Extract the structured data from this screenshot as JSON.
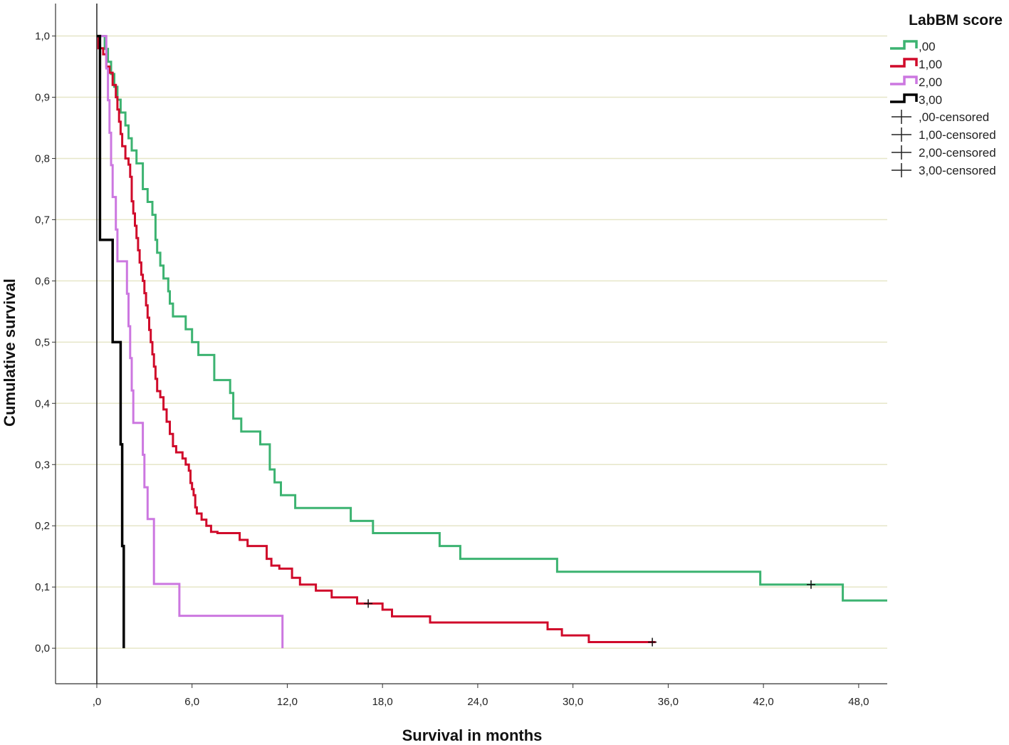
{
  "chart_data": {
    "type": "line",
    "subtype": "kaplan-meier step",
    "xlabel": "Survival in months",
    "ylabel": "Cumulative survival",
    "xlim": [
      -2.6,
      49.8
    ],
    "ylim": [
      -0.058,
      1.053
    ],
    "x_ticks": [
      0,
      6,
      12,
      18,
      24,
      30,
      36,
      42,
      48
    ],
    "x_tick_labels": [
      ",0",
      "6,0",
      "12,0",
      "18,0",
      "24,0",
      "30,0",
      "36,0",
      "42,0",
      "48,0"
    ],
    "y_ticks": [
      0,
      0.1,
      0.2,
      0.3,
      0.4,
      0.5,
      0.6,
      0.7,
      0.8,
      0.9,
      1.0
    ],
    "y_tick_labels": [
      "0,0",
      "0,1",
      "0,2",
      "0,3",
      "0,4",
      "0,5",
      "0,6",
      "0,7",
      "0,8",
      "0,9",
      "1,0"
    ],
    "grid": "horizontal",
    "legend_position": "top-right",
    "legend_title": "LabBM score",
    "legend_censored_labels": [
      ",00-censored",
      "1,00-censored",
      "2,00-censored",
      "3,00-censored"
    ],
    "series": [
      {
        "name": ",00",
        "color": "#3cb371",
        "steps": [
          [
            0,
            1.0
          ],
          [
            0.5,
            0.979
          ],
          [
            0.7,
            0.958
          ],
          [
            0.9,
            0.938
          ],
          [
            1.1,
            0.917
          ],
          [
            1.3,
            0.896
          ],
          [
            1.5,
            0.875
          ],
          [
            1.8,
            0.854
          ],
          [
            2.0,
            0.833
          ],
          [
            2.2,
            0.813
          ],
          [
            2.5,
            0.792
          ],
          [
            2.9,
            0.75
          ],
          [
            3.2,
            0.729
          ],
          [
            3.5,
            0.708
          ],
          [
            3.7,
            0.667
          ],
          [
            3.8,
            0.646
          ],
          [
            4.0,
            0.625
          ],
          [
            4.2,
            0.604
          ],
          [
            4.5,
            0.583
          ],
          [
            4.6,
            0.563
          ],
          [
            4.8,
            0.542
          ],
          [
            5.6,
            0.521
          ],
          [
            6.0,
            0.5
          ],
          [
            6.4,
            0.479
          ],
          [
            7.4,
            0.438
          ],
          [
            8.4,
            0.417
          ],
          [
            8.6,
            0.375
          ],
          [
            9.1,
            0.354
          ],
          [
            10.3,
            0.333
          ],
          [
            10.9,
            0.292
          ],
          [
            11.2,
            0.271
          ],
          [
            11.6,
            0.25
          ],
          [
            12.5,
            0.229
          ],
          [
            16.0,
            0.208
          ],
          [
            17.4,
            0.188
          ],
          [
            21.6,
            0.167
          ],
          [
            22.9,
            0.146
          ],
          [
            29.0,
            0.125
          ],
          [
            41.8,
            0.104
          ],
          [
            47.0,
            0.078
          ],
          [
            49.8,
            0.078
          ]
        ],
        "censored": [
          [
            45.0,
            0.104
          ]
        ]
      },
      {
        "name": "1,00",
        "color": "#d00a2a",
        "steps": [
          [
            0,
            1.0
          ],
          [
            0.1,
            0.98
          ],
          [
            0.4,
            0.97
          ],
          [
            0.6,
            0.95
          ],
          [
            0.8,
            0.94
          ],
          [
            1.0,
            0.92
          ],
          [
            1.2,
            0.9
          ],
          [
            1.3,
            0.88
          ],
          [
            1.4,
            0.86
          ],
          [
            1.5,
            0.84
          ],
          [
            1.6,
            0.82
          ],
          [
            1.8,
            0.8
          ],
          [
            2.0,
            0.79
          ],
          [
            2.1,
            0.77
          ],
          [
            2.2,
            0.73
          ],
          [
            2.3,
            0.71
          ],
          [
            2.4,
            0.69
          ],
          [
            2.5,
            0.67
          ],
          [
            2.6,
            0.65
          ],
          [
            2.7,
            0.63
          ],
          [
            2.8,
            0.61
          ],
          [
            2.9,
            0.6
          ],
          [
            3.0,
            0.58
          ],
          [
            3.1,
            0.56
          ],
          [
            3.2,
            0.54
          ],
          [
            3.3,
            0.52
          ],
          [
            3.4,
            0.5
          ],
          [
            3.5,
            0.48
          ],
          [
            3.6,
            0.46
          ],
          [
            3.7,
            0.44
          ],
          [
            3.8,
            0.42
          ],
          [
            4.0,
            0.41
          ],
          [
            4.2,
            0.39
          ],
          [
            4.4,
            0.37
          ],
          [
            4.6,
            0.35
          ],
          [
            4.8,
            0.33
          ],
          [
            5.0,
            0.32
          ],
          [
            5.4,
            0.31
          ],
          [
            5.6,
            0.3
          ],
          [
            5.8,
            0.29
          ],
          [
            5.9,
            0.27
          ],
          [
            6.0,
            0.26
          ],
          [
            6.1,
            0.25
          ],
          [
            6.2,
            0.23
          ],
          [
            6.3,
            0.22
          ],
          [
            6.6,
            0.21
          ],
          [
            6.9,
            0.2
          ],
          [
            7.2,
            0.19
          ],
          [
            7.6,
            0.188
          ],
          [
            9.0,
            0.177
          ],
          [
            9.5,
            0.167
          ],
          [
            10.7,
            0.146
          ],
          [
            11.0,
            0.135
          ],
          [
            11.5,
            0.13
          ],
          [
            12.3,
            0.115
          ],
          [
            12.8,
            0.104
          ],
          [
            13.8,
            0.094
          ],
          [
            14.8,
            0.083
          ],
          [
            16.4,
            0.073
          ],
          [
            18.0,
            0.063
          ],
          [
            18.6,
            0.052
          ],
          [
            21.0,
            0.042
          ],
          [
            28.4,
            0.031
          ],
          [
            29.3,
            0.021
          ],
          [
            31.0,
            0.01
          ],
          [
            35.2,
            0.01
          ]
        ],
        "censored": [
          [
            17.1,
            0.073
          ],
          [
            35.0,
            0.01
          ]
        ]
      },
      {
        "name": "2,00",
        "color": "#cc77e0",
        "steps": [
          [
            0,
            1.0
          ],
          [
            0.6,
            0.947
          ],
          [
            0.7,
            0.895
          ],
          [
            0.8,
            0.842
          ],
          [
            0.9,
            0.789
          ],
          [
            1.0,
            0.737
          ],
          [
            1.2,
            0.684
          ],
          [
            1.3,
            0.632
          ],
          [
            1.9,
            0.579
          ],
          [
            2.0,
            0.526
          ],
          [
            2.1,
            0.474
          ],
          [
            2.2,
            0.421
          ],
          [
            2.3,
            0.368
          ],
          [
            2.9,
            0.316
          ],
          [
            3.0,
            0.263
          ],
          [
            3.2,
            0.211
          ],
          [
            3.6,
            0.105
          ],
          [
            5.2,
            0.053
          ],
          [
            11.7,
            0.053
          ],
          [
            11.7,
            0.0
          ]
        ],
        "censored": []
      },
      {
        "name": "3,00",
        "color": "#000000",
        "steps": [
          [
            0,
            1.0
          ],
          [
            0.2,
            0.667
          ],
          [
            1.0,
            0.5
          ],
          [
            1.5,
            0.333
          ],
          [
            1.6,
            0.167
          ],
          [
            1.7,
            0.0
          ]
        ],
        "censored": []
      }
    ]
  }
}
